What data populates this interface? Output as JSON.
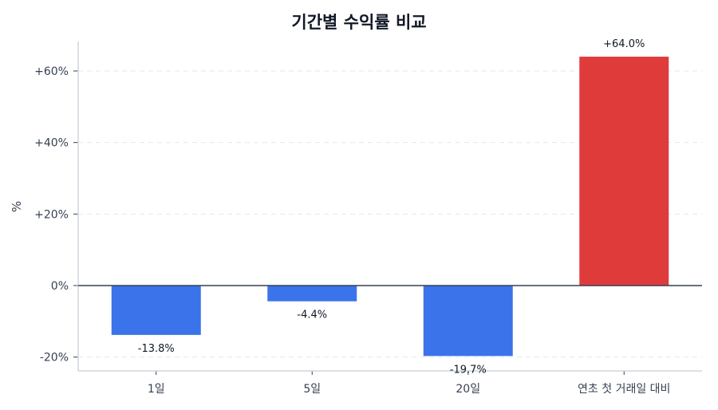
{
  "chart_data": {
    "type": "bar",
    "title": "기간별 수익률 비교",
    "xlabel": "",
    "ylabel": "%",
    "categories": [
      "1일",
      "5일",
      "20일",
      "연초 첫 거래일 대비"
    ],
    "values": [
      -13.8,
      -4.4,
      -19.7,
      64.0
    ],
    "value_labels": [
      "-13.8%",
      "-4.4%",
      "-19.7%",
      "+64.0%"
    ],
    "bar_colors": [
      "#3b73ea",
      "#3b73ea",
      "#3b73ea",
      "#df3b3b"
    ],
    "ylim": [
      -24,
      68
    ],
    "yticks": [
      -20,
      0,
      20,
      40,
      60
    ],
    "ytick_labels": [
      "-20%",
      "0%",
      "+20%",
      "+40%",
      "+60%"
    ],
    "grid": {
      "y": true,
      "style": "dashed"
    },
    "legend": null,
    "zero_line": true
  },
  "colors": {
    "negative": "#3b73ea",
    "positive": "#df3b3b",
    "axis": "#d1d5db",
    "zero_line": "#374151",
    "grid": "#e5e7eb",
    "text": "#374151"
  }
}
